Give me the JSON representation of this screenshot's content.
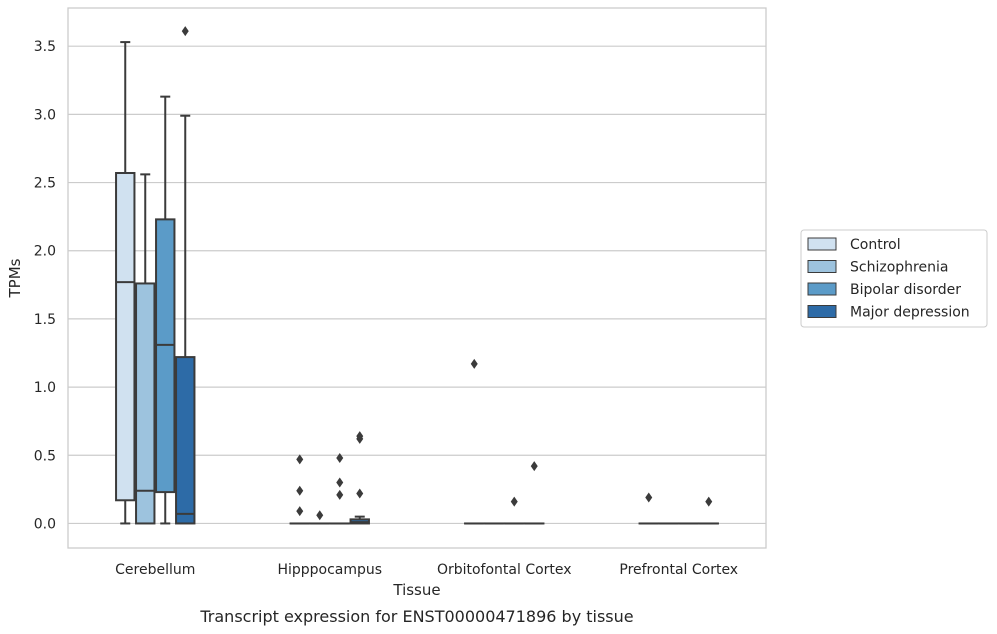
{
  "chart_data": {
    "type": "box",
    "title": "",
    "caption": "Transcript expression for ENST00000471896 by tissue",
    "xlabel": "Tissue",
    "ylabel": "TPMs",
    "ylim": [
      -0.18,
      3.78
    ],
    "yticks": [
      "0.0",
      "0.5",
      "1.0",
      "1.5",
      "2.0",
      "2.5",
      "3.0",
      "3.5"
    ],
    "grid": "horizontal",
    "legend_position": "right",
    "categories": [
      "Cerebellum",
      "Hipppocampus",
      "Orbitofontal Cortex",
      "Prefrontal Cortex"
    ],
    "series": [
      {
        "name": "Control",
        "color": "#d0e1f0",
        "boxes": [
          {
            "q1": 0.17,
            "median": 1.77,
            "q3": 2.57,
            "whisker_low": 0.0,
            "whisker_high": 3.53,
            "outliers": []
          },
          {
            "q1": 0.0,
            "median": 0.0,
            "q3": 0.0,
            "whisker_low": 0.0,
            "whisker_high": 0.0,
            "outliers": [
              0.47,
              0.24,
              0.09
            ]
          },
          {
            "q1": 0.0,
            "median": 0.0,
            "q3": 0.0,
            "whisker_low": 0.0,
            "whisker_high": 0.0,
            "outliers": [
              1.17
            ]
          },
          {
            "q1": 0.0,
            "median": 0.0,
            "q3": 0.0,
            "whisker_low": 0.0,
            "whisker_high": 0.0,
            "outliers": [
              0.19
            ]
          }
        ]
      },
      {
        "name": "Schizophrenia",
        "color": "#9dc3de",
        "boxes": [
          {
            "q1": 0.0,
            "median": 0.24,
            "q3": 1.76,
            "whisker_low": 0.0,
            "whisker_high": 2.56,
            "outliers": []
          },
          {
            "q1": 0.0,
            "median": 0.0,
            "q3": 0.0,
            "whisker_low": 0.0,
            "whisker_high": 0.0,
            "outliers": [
              0.06
            ]
          },
          {
            "q1": 0.0,
            "median": 0.0,
            "q3": 0.0,
            "whisker_low": 0.0,
            "whisker_high": 0.0,
            "outliers": []
          },
          {
            "q1": 0.0,
            "median": 0.0,
            "q3": 0.0,
            "whisker_low": 0.0,
            "whisker_high": 0.0,
            "outliers": []
          }
        ]
      },
      {
        "name": "Bipolar disorder",
        "color": "#5b9bc8",
        "boxes": [
          {
            "q1": 0.23,
            "median": 1.31,
            "q3": 2.23,
            "whisker_low": 0.0,
            "whisker_high": 3.13,
            "outliers": []
          },
          {
            "q1": 0.0,
            "median": 0.0,
            "q3": 0.0,
            "whisker_low": 0.0,
            "whisker_high": 0.0,
            "outliers": [
              0.48,
              0.3,
              0.21
            ]
          },
          {
            "q1": 0.0,
            "median": 0.0,
            "q3": 0.0,
            "whisker_low": 0.0,
            "whisker_high": 0.0,
            "outliers": [
              0.16
            ]
          },
          {
            "q1": 0.0,
            "median": 0.0,
            "q3": 0.0,
            "whisker_low": 0.0,
            "whisker_high": 0.0,
            "outliers": []
          }
        ]
      },
      {
        "name": "Major depression",
        "color": "#2d6ba7",
        "boxes": [
          {
            "q1": 0.0,
            "median": 0.07,
            "q3": 1.22,
            "whisker_low": 0.0,
            "whisker_high": 2.99,
            "outliers": [
              3.61
            ]
          },
          {
            "q1": 0.0,
            "median": 0.01,
            "q3": 0.03,
            "whisker_low": 0.0,
            "whisker_high": 0.05,
            "outliers": [
              0.64,
              0.62,
              0.22
            ]
          },
          {
            "q1": 0.0,
            "median": 0.0,
            "q3": 0.0,
            "whisker_low": 0.0,
            "whisker_high": 0.0,
            "outliers": [
              0.42
            ]
          },
          {
            "q1": 0.0,
            "median": 0.0,
            "q3": 0.0,
            "whisker_low": 0.0,
            "whisker_high": 0.0,
            "outliers": [
              0.16
            ]
          }
        ]
      }
    ]
  }
}
